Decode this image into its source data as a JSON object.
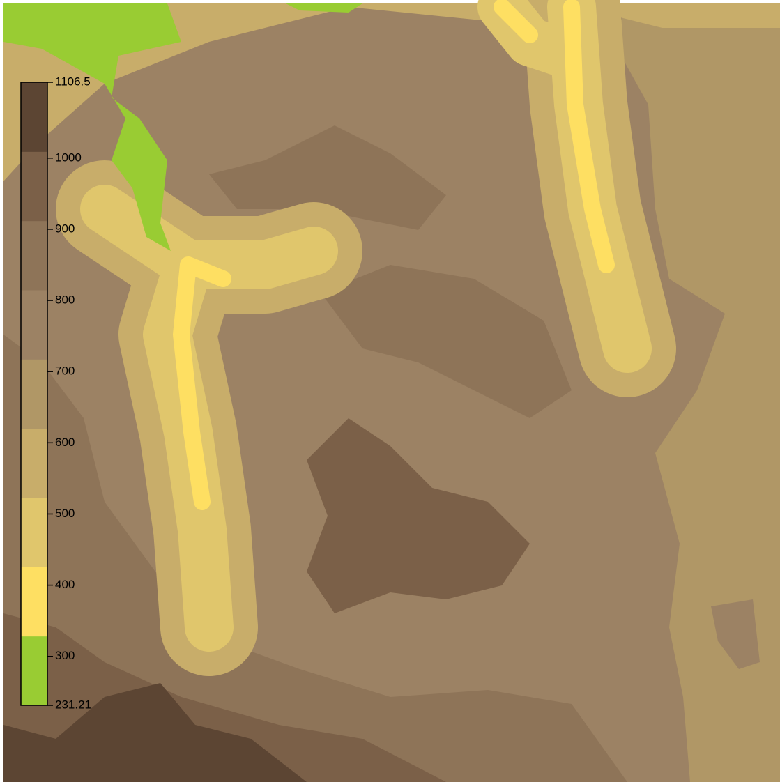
{
  "legend": {
    "range": [
      231.21,
      1106.5
    ],
    "ticks": [
      231.21,
      300,
      400,
      500,
      600,
      700,
      800,
      900,
      1000,
      1106.5
    ],
    "colors": [
      "#99cc33",
      "#fedf62",
      "#e0c66c",
      "#c8ad6a",
      "#b09766",
      "#9c8264",
      "#8e7458",
      "#7b6048",
      "#5c4533"
    ]
  }
}
